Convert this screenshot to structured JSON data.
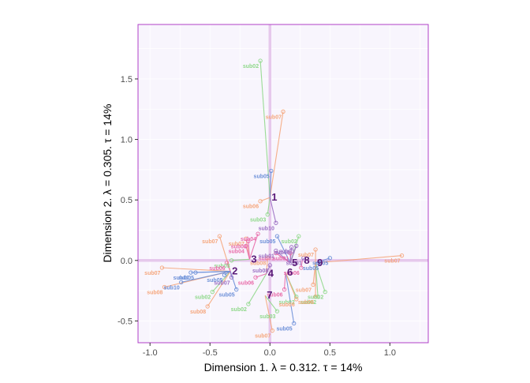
{
  "chart_data": {
    "type": "scatter",
    "title": "",
    "xlabel": "Dimension 1.   λ = 0.312.  τ = 14%",
    "ylabel": "Dimension 2.   λ = 0.305.  τ = 14%",
    "xlim": [
      -1.1,
      1.32
    ],
    "ylim": [
      -0.68,
      1.95
    ],
    "x_ticks": [
      -1.0,
      -0.5,
      0.0,
      0.5,
      1.0
    ],
    "x_tick_labels": [
      "-1.0",
      "-0.5",
      "0.0",
      "0.5",
      "1.0"
    ],
    "y_ticks": [
      -0.5,
      0.0,
      0.5,
      1.0,
      1.5
    ],
    "y_tick_labels": [
      "-0.5",
      "0.0",
      "0.5",
      "1.0",
      "1.5"
    ],
    "grid": true,
    "legend": "none",
    "colors": {
      "panel_background": "#f8f5fd",
      "panel_border": "#b040c8",
      "axis_lines": "#e6c8ec",
      "grid": "#ffffff",
      "centroid_labels": "#5a1a78"
    },
    "centroids": [
      {
        "label": "1",
        "x": 0.0,
        "y": 0.52
      },
      {
        "label": "2",
        "x": -0.33,
        "y": -0.09
      },
      {
        "label": "3",
        "x": -0.17,
        "y": 0.01
      },
      {
        "label": "4",
        "x": -0.03,
        "y": -0.11
      },
      {
        "label": "5",
        "x": 0.17,
        "y": -0.02
      },
      {
        "label": "6",
        "x": 0.13,
        "y": -0.1
      },
      {
        "label": "7",
        "x": -0.04,
        "y": -0.29
      },
      {
        "label": "8",
        "x": 0.27,
        "y": 0.0
      },
      {
        "label": "9",
        "x": 0.38,
        "y": -0.02
      }
    ],
    "series": [
      {
        "color": "#8fd88a",
        "points": [
          {
            "label": "sub02",
            "x": -0.08,
            "y": 1.65,
            "centroid": 0
          },
          {
            "label": "sub03",
            "x": -0.02,
            "y": 0.38,
            "centroid": 0
          },
          {
            "label": "sub02",
            "x": 0.24,
            "y": 0.2,
            "centroid": 4
          },
          {
            "label": "sub02",
            "x": -0.48,
            "y": -0.26,
            "centroid": 1
          },
          {
            "label": "sub02",
            "x": 0.46,
            "y": -0.26,
            "centroid": 8
          },
          {
            "label": "sub02",
            "x": 0.4,
            "y": -0.3,
            "centroid": 8
          },
          {
            "label": "sub02",
            "x": -0.18,
            "y": -0.36,
            "centroid": 3
          },
          {
            "label": "sub03",
            "x": 0.06,
            "y": -0.42,
            "centroid": 6
          },
          {
            "label": "sub02",
            "x": 0.22,
            "y": -0.3,
            "centroid": 5
          },
          {
            "label": "sub03",
            "x": -0.32,
            "y": 0.0,
            "centroid": 2
          }
        ]
      },
      {
        "color": "#f5a67c",
        "points": [
          {
            "label": "sub07",
            "x": 0.11,
            "y": 1.23,
            "centroid": 0
          },
          {
            "label": "sub06",
            "x": -0.08,
            "y": 0.49,
            "centroid": 0
          },
          {
            "label": "sub07",
            "x": -0.9,
            "y": -0.06,
            "centroid": 1
          },
          {
            "label": "sub07",
            "x": 1.1,
            "y": 0.04,
            "centroid": 8
          },
          {
            "label": "sub08",
            "x": -0.88,
            "y": -0.22,
            "centroid": 1
          },
          {
            "label": "sub07",
            "x": 0.38,
            "y": 0.09,
            "centroid": 8
          },
          {
            "label": "sub06",
            "x": 0.22,
            "y": -0.32,
            "centroid": 5
          },
          {
            "label": "sub07",
            "x": 0.36,
            "y": -0.2,
            "centroid": 8
          },
          {
            "label": "sub07",
            "x": 0.02,
            "y": -0.58,
            "centroid": 6
          },
          {
            "label": "sub08",
            "x": -0.52,
            "y": -0.38,
            "centroid": 1
          },
          {
            "label": "sub07",
            "x": -0.2,
            "y": 0.18,
            "centroid": 2
          },
          {
            "label": "sub08",
            "x": -0.02,
            "y": 0.02,
            "centroid": 3
          },
          {
            "label": "sub06",
            "x": 0.38,
            "y": -0.3,
            "centroid": 8
          },
          {
            "label": "sub07",
            "x": -0.42,
            "y": 0.2,
            "centroid": 1
          }
        ]
      },
      {
        "color": "#6b8fd8",
        "points": [
          {
            "label": "sub05",
            "x": 0.01,
            "y": 0.74,
            "centroid": 0
          },
          {
            "label": "sub10",
            "x": -0.66,
            "y": -0.1,
            "centroid": 1
          },
          {
            "label": "sub05",
            "x": 0.5,
            "y": 0.02,
            "centroid": 8
          },
          {
            "label": "sub05",
            "x": -0.62,
            "y": -0.1,
            "centroid": 1
          },
          {
            "label": "sub05",
            "x": 0.2,
            "y": -0.52,
            "centroid": 5
          },
          {
            "label": "sub05",
            "x": 0.06,
            "y": 0.2,
            "centroid": 4
          },
          {
            "label": "sub05",
            "x": -0.28,
            "y": -0.24,
            "centroid": 1
          },
          {
            "label": "sub05",
            "x": -0.38,
            "y": -0.12,
            "centroid": 1
          },
          {
            "label": "sub10",
            "x": -0.74,
            "y": -0.18,
            "centroid": 1
          },
          {
            "label": "sub05",
            "x": 0.42,
            "y": -0.02,
            "centroid": 8
          }
        ]
      },
      {
        "color": "#e86aa8",
        "points": [
          {
            "label": "sub08",
            "x": -0.18,
            "y": 0.16,
            "centroid": 2
          },
          {
            "label": "sub04",
            "x": -0.2,
            "y": 0.12,
            "centroid": 2
          },
          {
            "label": "sub06",
            "x": 0.26,
            "y": -0.06,
            "centroid": 7
          },
          {
            "label": "sub06",
            "x": -0.12,
            "y": -0.14,
            "centroid": 3
          },
          {
            "label": "sub06",
            "x": 0.12,
            "y": -0.24,
            "centroid": 5
          },
          {
            "label": "sub04",
            "x": -0.1,
            "y": 0.22,
            "centroid": 2
          },
          {
            "label": "sub01",
            "x": 0.05,
            "y": 0.06,
            "centroid": 4
          },
          {
            "label": "sub01",
            "x": 0.17,
            "y": 0.06,
            "centroid": 4
          },
          {
            "label": "sub06",
            "x": -0.36,
            "y": -0.02,
            "centroid": 1
          }
        ]
      },
      {
        "color": "#9a6ec2",
        "points": [
          {
            "label": "sub10",
            "x": 0.05,
            "y": 0.31,
            "centroid": 0
          },
          {
            "label": "sub05",
            "x": 0.18,
            "y": 0.11,
            "centroid": 4
          },
          {
            "label": "sub01",
            "x": 0.05,
            "y": 0.08,
            "centroid": 4
          },
          {
            "label": "sub01",
            "x": 0.22,
            "y": 0.12,
            "centroid": 4
          },
          {
            "label": "sub08",
            "x": 0.0,
            "y": -0.04,
            "centroid": 3
          },
          {
            "label": "sub07",
            "x": -0.32,
            "y": -0.14,
            "centroid": 1
          },
          {
            "label": "sub01",
            "x": 0.28,
            "y": 0.02,
            "centroid": 7
          }
        ]
      }
    ]
  }
}
